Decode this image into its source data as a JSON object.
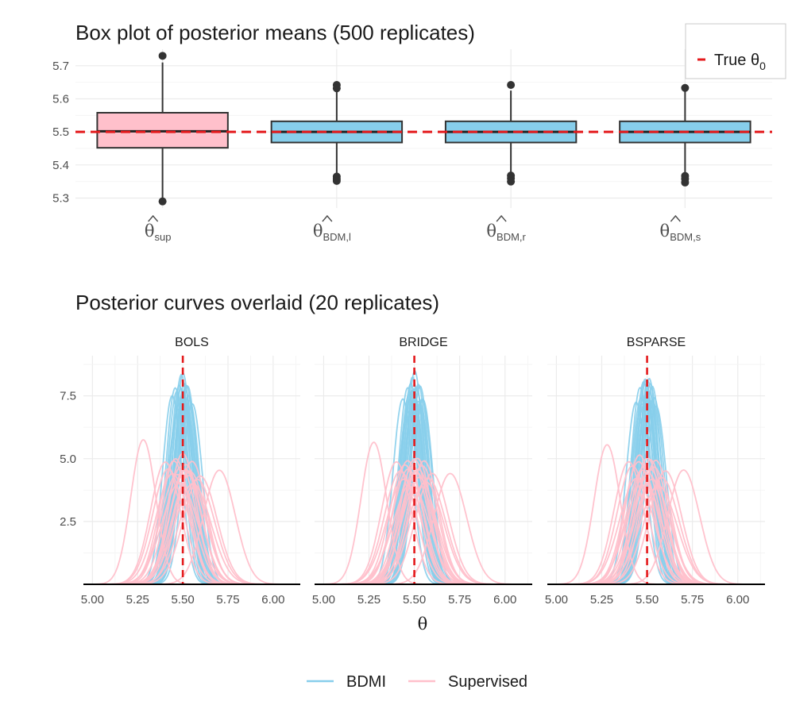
{
  "chart_data": [
    {
      "type": "box",
      "title": "Box plot of posterior means (500 replicates)",
      "ylim": [
        5.27,
        5.75
      ],
      "yticks": [
        5.3,
        5.4,
        5.5,
        5.6,
        5.7
      ],
      "ytick_labels": [
        "5.3",
        "5.4",
        "5.5",
        "5.6",
        "5.7"
      ],
      "reference_line": {
        "value": 5.5,
        "color": "#e41a1c",
        "style": "dashed",
        "legend_label": "True θ",
        "legend_subscript": "0"
      },
      "categories": [
        {
          "symbol": "θ",
          "subscript": "sup"
        },
        {
          "symbol": "θ",
          "subscript": "BDM,l"
        },
        {
          "symbol": "θ",
          "subscript": "BDM,r"
        },
        {
          "symbol": "θ",
          "subscript": "BDM,s"
        }
      ],
      "boxes": [
        {
          "q1": 5.452,
          "median": 5.502,
          "q3": 5.558,
          "whisker_low": 5.3,
          "whisker_high": 5.71,
          "outliers": [
            5.73,
            5.29
          ],
          "fill": "#ffc0cb"
        },
        {
          "q1": 5.468,
          "median": 5.5,
          "q3": 5.532,
          "whisker_low": 5.375,
          "whisker_high": 5.625,
          "outliers": [
            5.642,
            5.632,
            5.365,
            5.358,
            5.352
          ],
          "fill": "#87ceeb"
        },
        {
          "q1": 5.468,
          "median": 5.5,
          "q3": 5.532,
          "whisker_low": 5.378,
          "whisker_high": 5.625,
          "outliers": [
            5.642,
            5.368,
            5.36,
            5.35
          ],
          "fill": "#87ceeb"
        },
        {
          "q1": 5.468,
          "median": 5.5,
          "q3": 5.532,
          "whisker_low": 5.378,
          "whisker_high": 5.622,
          "outliers": [
            5.633,
            5.367,
            5.358,
            5.347
          ],
          "fill": "#87ceeb"
        }
      ]
    },
    {
      "type": "line",
      "title": "Posterior curves overlaid (20 replicates)",
      "xlabel": "θ",
      "xlim": [
        4.95,
        6.15
      ],
      "xticks": [
        5.0,
        5.25,
        5.5,
        5.75,
        6.0
      ],
      "xtick_labels": [
        "5.00",
        "5.25",
        "5.50",
        "5.75",
        "6.00"
      ],
      "ylim": [
        0,
        9.1
      ],
      "yticks": [
        2.5,
        5.0,
        7.5
      ],
      "ytick_labels": [
        "2.5",
        "5.0",
        "7.5"
      ],
      "reference_line": {
        "value": 5.5,
        "color": "#e41a1c",
        "style": "dashed"
      },
      "panels": [
        "BOLS",
        "BRIDGE",
        "BSPARSE"
      ],
      "series": [
        {
          "name": "BDMI",
          "color": "#87ceeb",
          "replicates": 20,
          "approx_centers": [
            5.44,
            5.46,
            5.47,
            5.48,
            5.48,
            5.49,
            5.49,
            5.5,
            5.5,
            5.5,
            5.51,
            5.51,
            5.52,
            5.52,
            5.53,
            5.54,
            5.55,
            5.47,
            5.53,
            5.5
          ],
          "approx_peak_heights": [
            7.3,
            7.8,
            7.5,
            8.0,
            7.2,
            7.9,
            8.1,
            7.6,
            8.3,
            7.4,
            7.7,
            8.0,
            7.1,
            7.8,
            7.3,
            7.5,
            7.2,
            7.0,
            7.9,
            7.6
          ]
        },
        {
          "name": "Supervised",
          "color": "#ffc0cb",
          "replicates": 20,
          "approx_centers": [
            5.28,
            5.4,
            5.42,
            5.44,
            5.45,
            5.47,
            5.48,
            5.49,
            5.5,
            5.51,
            5.52,
            5.53,
            5.54,
            5.55,
            5.56,
            5.58,
            5.6,
            5.46,
            5.52,
            5.7
          ],
          "approx_peak_heights": [
            5.6,
            4.9,
            4.6,
            4.3,
            4.8,
            4.5,
            4.1,
            4.7,
            5.1,
            4.4,
            4.9,
            4.2,
            4.6,
            4.8,
            4.0,
            4.3,
            4.4,
            5.0,
            4.5,
            4.5
          ]
        }
      ],
      "legend": {
        "position": "bottom",
        "entries": [
          "BDMI",
          "Supervised"
        ]
      }
    }
  ]
}
